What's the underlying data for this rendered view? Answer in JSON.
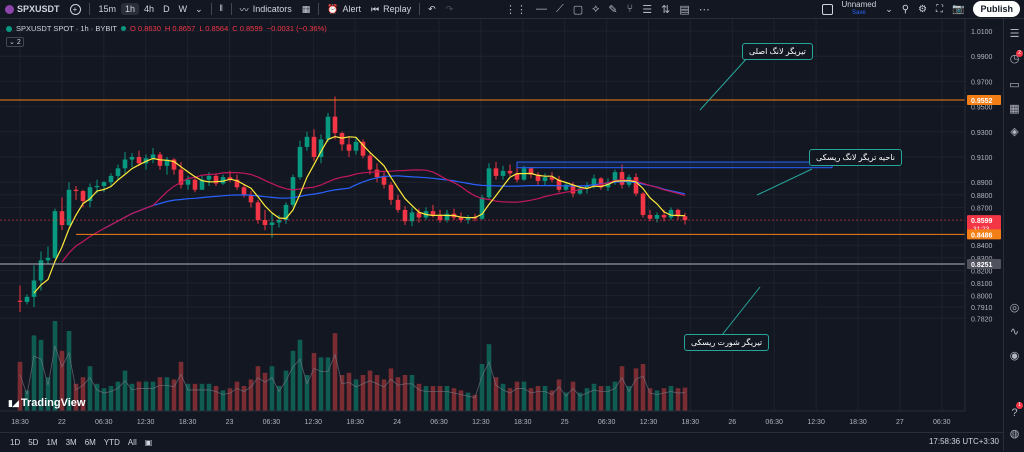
{
  "toolbar": {
    "symbol": "SPXUSDT",
    "timeframes": [
      "15m",
      "1h",
      "4h",
      "D",
      "W"
    ],
    "active_timeframe": "1h",
    "indicators_label": "Indicators",
    "alert_label": "Alert",
    "replay_label": "Replay",
    "layout_name": "Unnamed",
    "layout_status": "Save",
    "publish_label": "Publish"
  },
  "legend": {
    "title": "SPXUSDT SPOT · 1h · BYBIT",
    "open": "O 0.8630",
    "high": "H 0.8657",
    "low": "L 0.8564",
    "close": "C 0.8599",
    "change": "−0.0031 (−0.36%)",
    "collapsed_count": "2"
  },
  "watermark": "TradingView",
  "annotations": {
    "main_long": "تیریگر لانگ اصلی",
    "risky_long_zone": "ناحیه تریگر لانگ ریسکی",
    "risky_short": "تیریگر شورت ریسکی"
  },
  "bottom": {
    "ranges": [
      "1D",
      "5D",
      "1M",
      "3M",
      "6M",
      "YTD",
      "All"
    ],
    "time": "17:58:36 UTC+3:30"
  },
  "price_axis": {
    "ticks": [
      "1.0100",
      "0.9900",
      "0.9700",
      "0.9500",
      "0.9300",
      "0.9100",
      "0.8900",
      "0.8800",
      "0.8700",
      "0.8400",
      "0.8300",
      "0.8200",
      "0.8100",
      "0.8000",
      "0.7910",
      "0.7820"
    ],
    "markers": [
      {
        "price": 0.9552,
        "label": "0.9552",
        "bg": "#f57f17"
      },
      {
        "price": 0.8599,
        "label": "0.8599",
        "sub": "31:23",
        "bg": "#f23645"
      },
      {
        "price": 0.8486,
        "label": "0.8486",
        "bg": "#f57f17"
      },
      {
        "price": 0.8251,
        "label": "0.8251",
        "bg": "#50535e"
      }
    ]
  },
  "time_axis": [
    "18:30",
    "22",
    "06:30",
    "12:30",
    "18:30",
    "23",
    "06:30",
    "12:30",
    "18:30",
    "24",
    "06:30",
    "12:30",
    "18:30",
    "25",
    "06:30",
    "12:30",
    "18:30",
    "26",
    "06:30",
    "12:30",
    "18:30",
    "27",
    "06:30"
  ],
  "colors": {
    "up": "#089981",
    "down": "#f23645",
    "ma_fast": "#ffeb3b",
    "ma_mid": "#c2185b",
    "ma_slow": "#2962ff",
    "level_main": "#f57f17",
    "level_short": "#b2b5be",
    "zone": "#2962ff",
    "annotation_border": "#26a69a"
  },
  "chart_data": {
    "type": "candlestick",
    "symbol": "SPXUSDT",
    "interval": "1h",
    "exchange": "BYBIT",
    "levels": [
      0.9552,
      0.8599,
      0.8486,
      0.8251
    ],
    "zone": {
      "top": 0.906,
      "bottom": 0.9015
    },
    "candles": [
      [
        0.796,
        0.808,
        0.787,
        0.795
      ],
      [
        0.795,
        0.801,
        0.793,
        0.799
      ],
      [
        0.799,
        0.824,
        0.791,
        0.812
      ],
      [
        0.812,
        0.835,
        0.804,
        0.828
      ],
      [
        0.828,
        0.839,
        0.825,
        0.83
      ],
      [
        0.83,
        0.869,
        0.829,
        0.867
      ],
      [
        0.867,
        0.878,
        0.852,
        0.856
      ],
      [
        0.856,
        0.89,
        0.855,
        0.884
      ],
      [
        0.884,
        0.887,
        0.876,
        0.883
      ],
      [
        0.883,
        0.884,
        0.87,
        0.875
      ],
      [
        0.875,
        0.889,
        0.87,
        0.886
      ],
      [
        0.886,
        0.892,
        0.881,
        0.887
      ],
      [
        0.887,
        0.891,
        0.882,
        0.89
      ],
      [
        0.89,
        0.897,
        0.887,
        0.895
      ],
      [
        0.895,
        0.904,
        0.892,
        0.901
      ],
      [
        0.901,
        0.914,
        0.897,
        0.908
      ],
      [
        0.908,
        0.913,
        0.902,
        0.91
      ],
      [
        0.91,
        0.915,
        0.903,
        0.905
      ],
      [
        0.905,
        0.912,
        0.9,
        0.909
      ],
      [
        0.909,
        0.917,
        0.905,
        0.912
      ],
      [
        0.912,
        0.914,
        0.9,
        0.903
      ],
      [
        0.903,
        0.91,
        0.896,
        0.908
      ],
      [
        0.908,
        0.909,
        0.896,
        0.9
      ],
      [
        0.9,
        0.906,
        0.885,
        0.888
      ],
      [
        0.888,
        0.895,
        0.884,
        0.892
      ],
      [
        0.892,
        0.893,
        0.882,
        0.884
      ],
      [
        0.884,
        0.895,
        0.884,
        0.892
      ],
      [
        0.892,
        0.898,
        0.887,
        0.895
      ],
      [
        0.895,
        0.897,
        0.887,
        0.889
      ],
      [
        0.889,
        0.896,
        0.888,
        0.894
      ],
      [
        0.894,
        0.899,
        0.89,
        0.892
      ],
      [
        0.892,
        0.896,
        0.884,
        0.886
      ],
      [
        0.886,
        0.888,
        0.878,
        0.88
      ],
      [
        0.88,
        0.883,
        0.87,
        0.874
      ],
      [
        0.874,
        0.876,
        0.857,
        0.86
      ],
      [
        0.86,
        0.868,
        0.852,
        0.856
      ],
      [
        0.856,
        0.865,
        0.846,
        0.858
      ],
      [
        0.858,
        0.864,
        0.854,
        0.86
      ],
      [
        0.86,
        0.874,
        0.857,
        0.872
      ],
      [
        0.872,
        0.896,
        0.87,
        0.894
      ],
      [
        0.894,
        0.923,
        0.892,
        0.918
      ],
      [
        0.918,
        0.93,
        0.915,
        0.926
      ],
      [
        0.926,
        0.932,
        0.907,
        0.91
      ],
      [
        0.91,
        0.928,
        0.905,
        0.924
      ],
      [
        0.924,
        0.945,
        0.922,
        0.942
      ],
      [
        0.942,
        0.958,
        0.924,
        0.929
      ],
      [
        0.929,
        0.93,
        0.915,
        0.92
      ],
      [
        0.92,
        0.926,
        0.91,
        0.915
      ],
      [
        0.915,
        0.925,
        0.912,
        0.922
      ],
      [
        0.922,
        0.924,
        0.909,
        0.911
      ],
      [
        0.911,
        0.913,
        0.896,
        0.9
      ],
      [
        0.9,
        0.905,
        0.89,
        0.894
      ],
      [
        0.894,
        0.898,
        0.885,
        0.888
      ],
      [
        0.888,
        0.89,
        0.872,
        0.876
      ],
      [
        0.876,
        0.88,
        0.866,
        0.868
      ],
      [
        0.868,
        0.871,
        0.856,
        0.859
      ],
      [
        0.859,
        0.87,
        0.855,
        0.866
      ],
      [
        0.866,
        0.869,
        0.858,
        0.862
      ],
      [
        0.862,
        0.87,
        0.86,
        0.867
      ],
      [
        0.867,
        0.872,
        0.862,
        0.864
      ],
      [
        0.864,
        0.868,
        0.858,
        0.86
      ],
      [
        0.86,
        0.868,
        0.858,
        0.865
      ],
      [
        0.865,
        0.869,
        0.86,
        0.862
      ],
      [
        0.862,
        0.866,
        0.858,
        0.86
      ],
      [
        0.86,
        0.864,
        0.857,
        0.862
      ],
      [
        0.862,
        0.865,
        0.859,
        0.861
      ],
      [
        0.861,
        0.88,
        0.86,
        0.878
      ],
      [
        0.878,
        0.905,
        0.876,
        0.901
      ],
      [
        0.901,
        0.906,
        0.892,
        0.895
      ],
      [
        0.895,
        0.903,
        0.892,
        0.899
      ],
      [
        0.899,
        0.904,
        0.895,
        0.897
      ],
      [
        0.897,
        0.902,
        0.89,
        0.892
      ],
      [
        0.892,
        0.903,
        0.891,
        0.901
      ],
      [
        0.901,
        0.902,
        0.893,
        0.896
      ],
      [
        0.896,
        0.898,
        0.888,
        0.891
      ],
      [
        0.891,
        0.897,
        0.887,
        0.894
      ],
      [
        0.894,
        0.898,
        0.89,
        0.892
      ],
      [
        0.892,
        0.895,
        0.882,
        0.884
      ],
      [
        0.884,
        0.89,
        0.883,
        0.888
      ],
      [
        0.888,
        0.89,
        0.878,
        0.881
      ],
      [
        0.881,
        0.887,
        0.88,
        0.885
      ],
      [
        0.885,
        0.89,
        0.881,
        0.887
      ],
      [
        0.887,
        0.896,
        0.885,
        0.893
      ],
      [
        0.893,
        0.894,
        0.884,
        0.886
      ],
      [
        0.886,
        0.893,
        0.883,
        0.89
      ],
      [
        0.89,
        0.9,
        0.888,
        0.898
      ],
      [
        0.898,
        0.904,
        0.885,
        0.888
      ],
      [
        0.888,
        0.896,
        0.886,
        0.894
      ],
      [
        0.894,
        0.897,
        0.879,
        0.881
      ],
      [
        0.881,
        0.882,
        0.862,
        0.864
      ],
      [
        0.864,
        0.868,
        0.859,
        0.861
      ],
      [
        0.861,
        0.866,
        0.858,
        0.864
      ],
      [
        0.864,
        0.868,
        0.859,
        0.862
      ],
      [
        0.862,
        0.87,
        0.86,
        0.868
      ],
      [
        0.868,
        0.869,
        0.86,
        0.863
      ],
      [
        0.863,
        0.8657,
        0.8564,
        0.8599
      ]
    ]
  }
}
